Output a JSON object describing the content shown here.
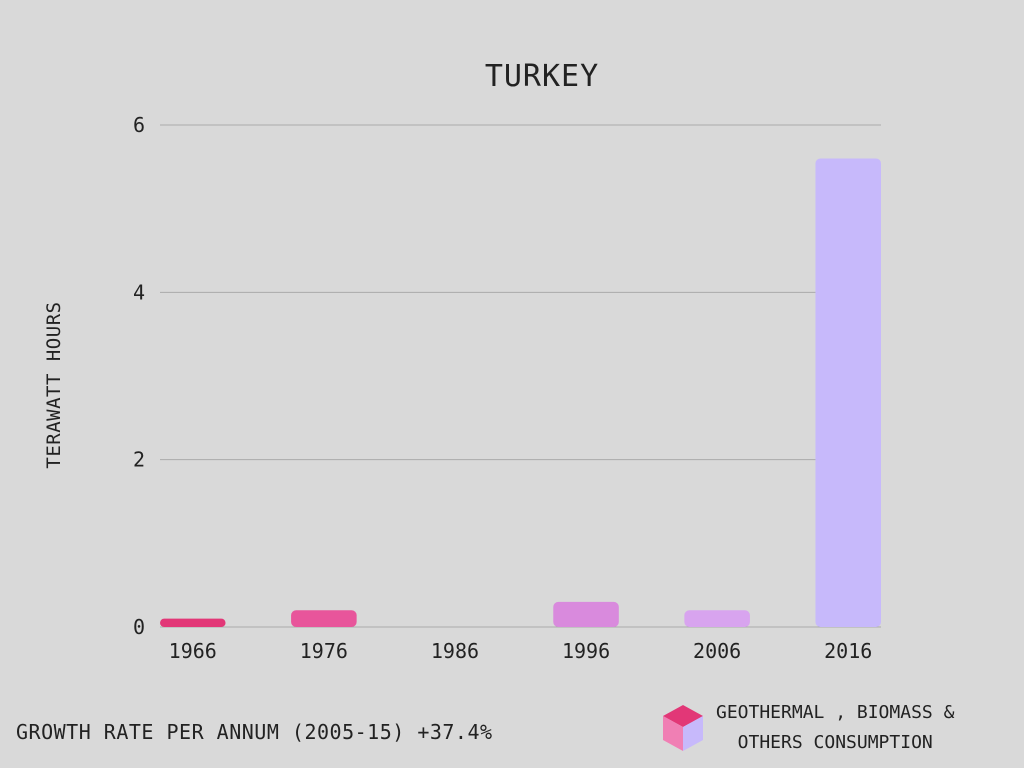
{
  "chart_data": {
    "type": "bar",
    "title": "TURKEY",
    "ylabel": "TERAWATT HOURS",
    "xlabel": "",
    "categories": [
      "1966",
      "1976",
      "1986",
      "1996",
      "2006",
      "2016"
    ],
    "values": [
      0.1,
      0.2,
      0.0,
      0.3,
      0.2,
      5.6
    ],
    "bar_colors": [
      "#e23777",
      "#e8559b",
      "#e680c8",
      "#d98add",
      "#d8a4ef",
      "#c7b9fb"
    ],
    "ylim": [
      0,
      6
    ],
    "yticks": [
      0,
      2,
      4,
      6
    ],
    "grid": true,
    "gridline_color": "#aaaaaa"
  },
  "footer": {
    "growth_note": "GROWTH RATE PER ANNUM (2005-15) +37.4%"
  },
  "legend": {
    "line1": "GEOTHERMAL , BIOMASS &",
    "line2": "OTHERS CONSUMPTION",
    "icon": "cube-icon",
    "colors": [
      "#e23777",
      "#f07fb4",
      "#c7b9fb"
    ]
  }
}
